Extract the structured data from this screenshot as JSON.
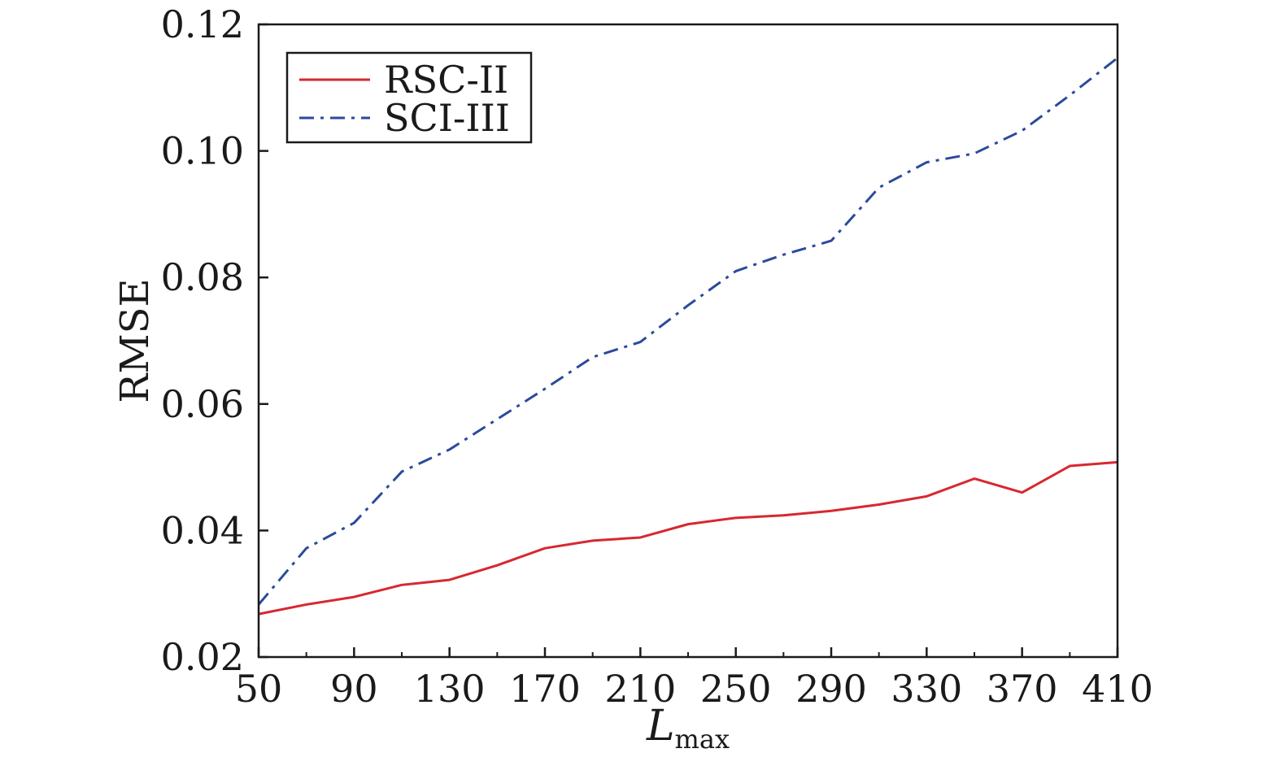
{
  "chart_data": {
    "type": "line",
    "x": [
      50,
      70,
      90,
      110,
      130,
      150,
      170,
      190,
      210,
      230,
      250,
      270,
      290,
      310,
      330,
      350,
      370,
      390,
      410
    ],
    "xticks": [
      "50",
      "90",
      "130",
      "170",
      "210",
      "250",
      "290",
      "330",
      "370",
      "410"
    ],
    "yticks": [
      "0.02",
      "0.04",
      "0.06",
      "0.08",
      "0.10",
      "0.12"
    ],
    "xlim": [
      50,
      410
    ],
    "ylim": [
      0.02,
      0.12
    ],
    "xlabel_main": "L",
    "xlabel_sub": "max",
    "ylabel": "RMSE",
    "grid": false,
    "legend_position": "top-left",
    "series": [
      {
        "name": "RSC-II",
        "color": "#d7282f",
        "style": "solid",
        "values": [
          0.0268,
          0.0283,
          0.0295,
          0.0314,
          0.0322,
          0.0345,
          0.0372,
          0.0384,
          0.0389,
          0.041,
          0.042,
          0.0424,
          0.0431,
          0.0441,
          0.0454,
          0.0482,
          0.046,
          0.0502,
          0.0508
        ]
      },
      {
        "name": "SCI-III",
        "color": "#2b4a9c",
        "style": "dashdot",
        "values": [
          0.0283,
          0.0372,
          0.0412,
          0.0493,
          0.0528,
          0.0576,
          0.0624,
          0.0674,
          0.0698,
          0.0756,
          0.081,
          0.0836,
          0.0858,
          0.0942,
          0.0982,
          0.0996,
          0.1032,
          0.1088,
          0.1147
        ]
      }
    ]
  }
}
